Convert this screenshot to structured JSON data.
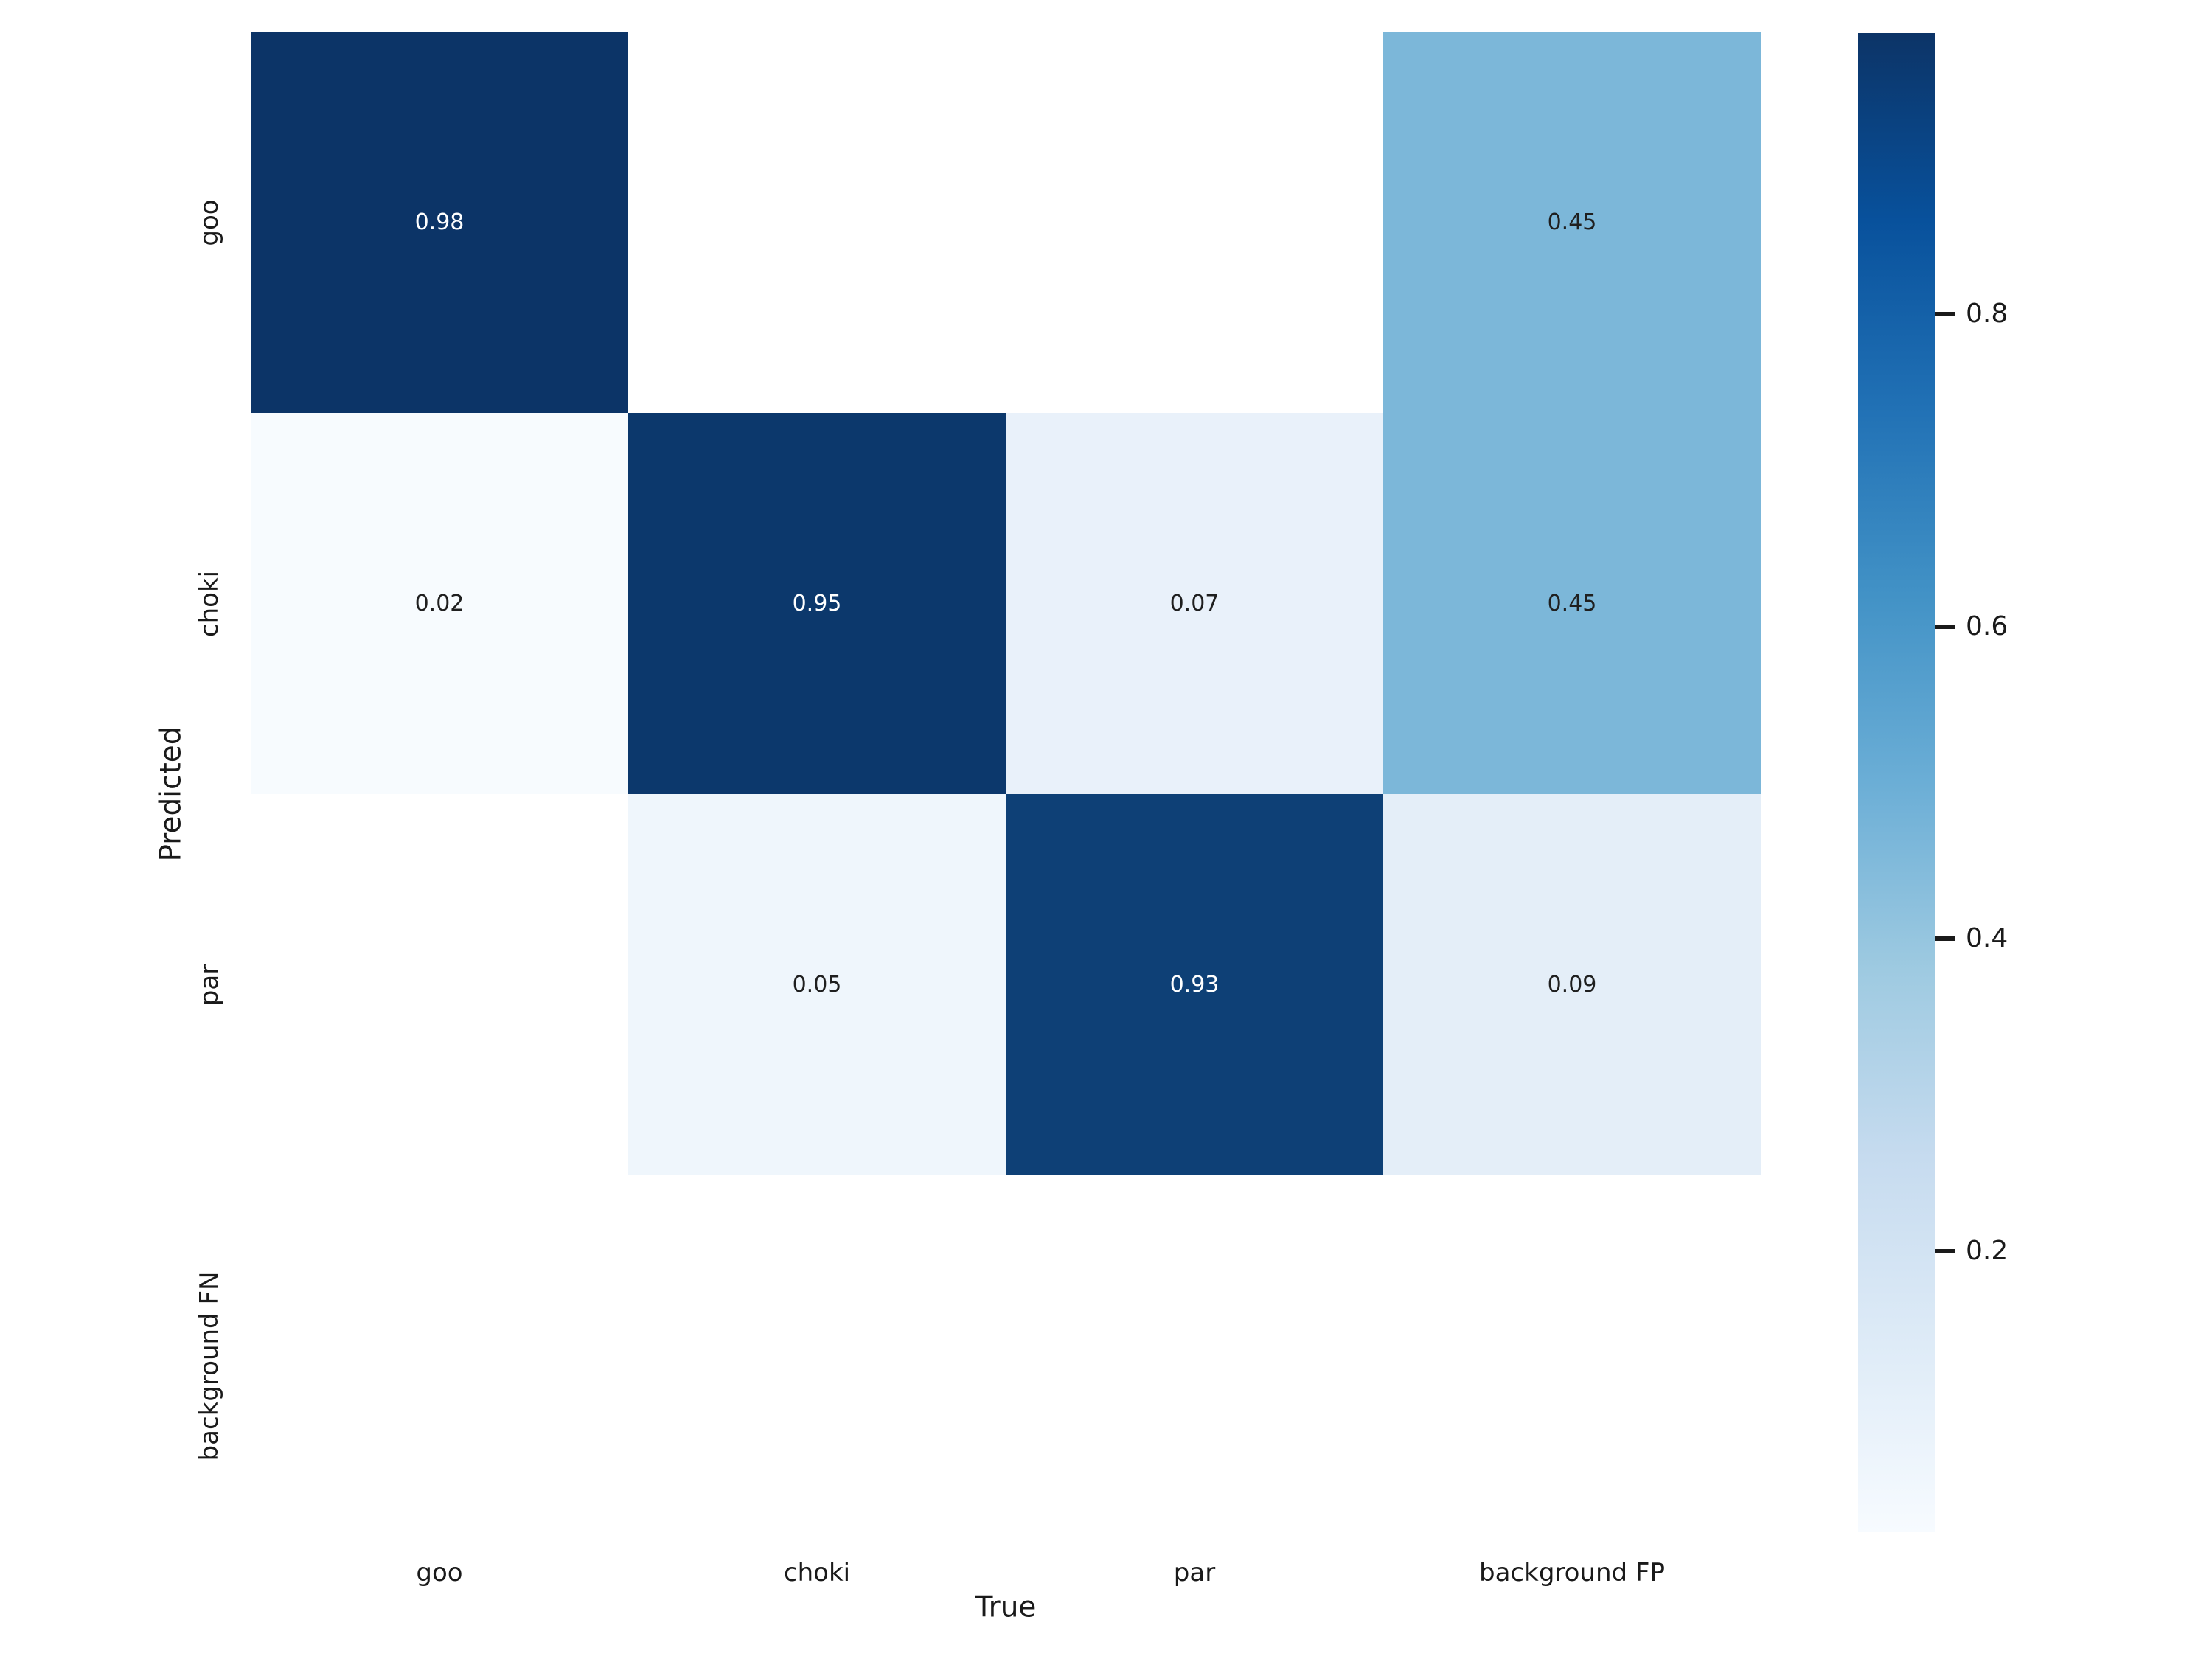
{
  "chart_data": {
    "type": "heatmap",
    "title": "",
    "xlabel": "True",
    "ylabel": "Predicted",
    "x_categories": [
      "goo",
      "choki",
      "par",
      "background FP"
    ],
    "y_categories": [
      "goo",
      "choki",
      "par",
      "background FN"
    ],
    "matrix": [
      [
        0.98,
        null,
        null,
        0.45
      ],
      [
        0.02,
        0.95,
        0.07,
        0.45
      ],
      [
        null,
        0.05,
        0.93,
        0.09
      ],
      [
        null,
        null,
        null,
        null
      ]
    ],
    "value_format_decimals": 2,
    "vmin": 0.02,
    "vmax": 0.98,
    "colormap": "Blues",
    "grid": false,
    "legend_position": "right-colorbar",
    "colorbar_ticks": [
      0.8,
      0.6,
      0.4,
      0.2
    ],
    "cell_colors": [
      [
        "#0c3467",
        "#ffffff",
        "#ffffff",
        "#7cb7d9"
      ],
      [
        "#f7fbfe",
        "#0c386c",
        "#e9f1fa",
        "#7cb7d9"
      ],
      [
        "#ffffff",
        "#eff6fc",
        "#0e4076",
        "#e4eef8"
      ],
      [
        "#ffffff",
        "#ffffff",
        "#ffffff",
        "#ffffff"
      ]
    ],
    "annot_colors": [
      [
        "#ffffff",
        "",
        "",
        "#1f1f1f"
      ],
      [
        "#1f1f1f",
        "#ffffff",
        "#1f1f1f",
        "#1f1f1f"
      ],
      [
        "",
        "#1f1f1f",
        "#ffffff",
        "#1f1f1f"
      ],
      [
        "",
        "",
        "",
        ""
      ]
    ],
    "colorbar_gradient": [
      "#0c3467",
      "#08519c",
      "#2171b5",
      "#4292c6",
      "#6baed6",
      "#9ecae1",
      "#c6dbef",
      "#deebf7",
      "#f7fbff"
    ],
    "text_color": "#1a1a1a",
    "background_color": "#ffffff"
  }
}
